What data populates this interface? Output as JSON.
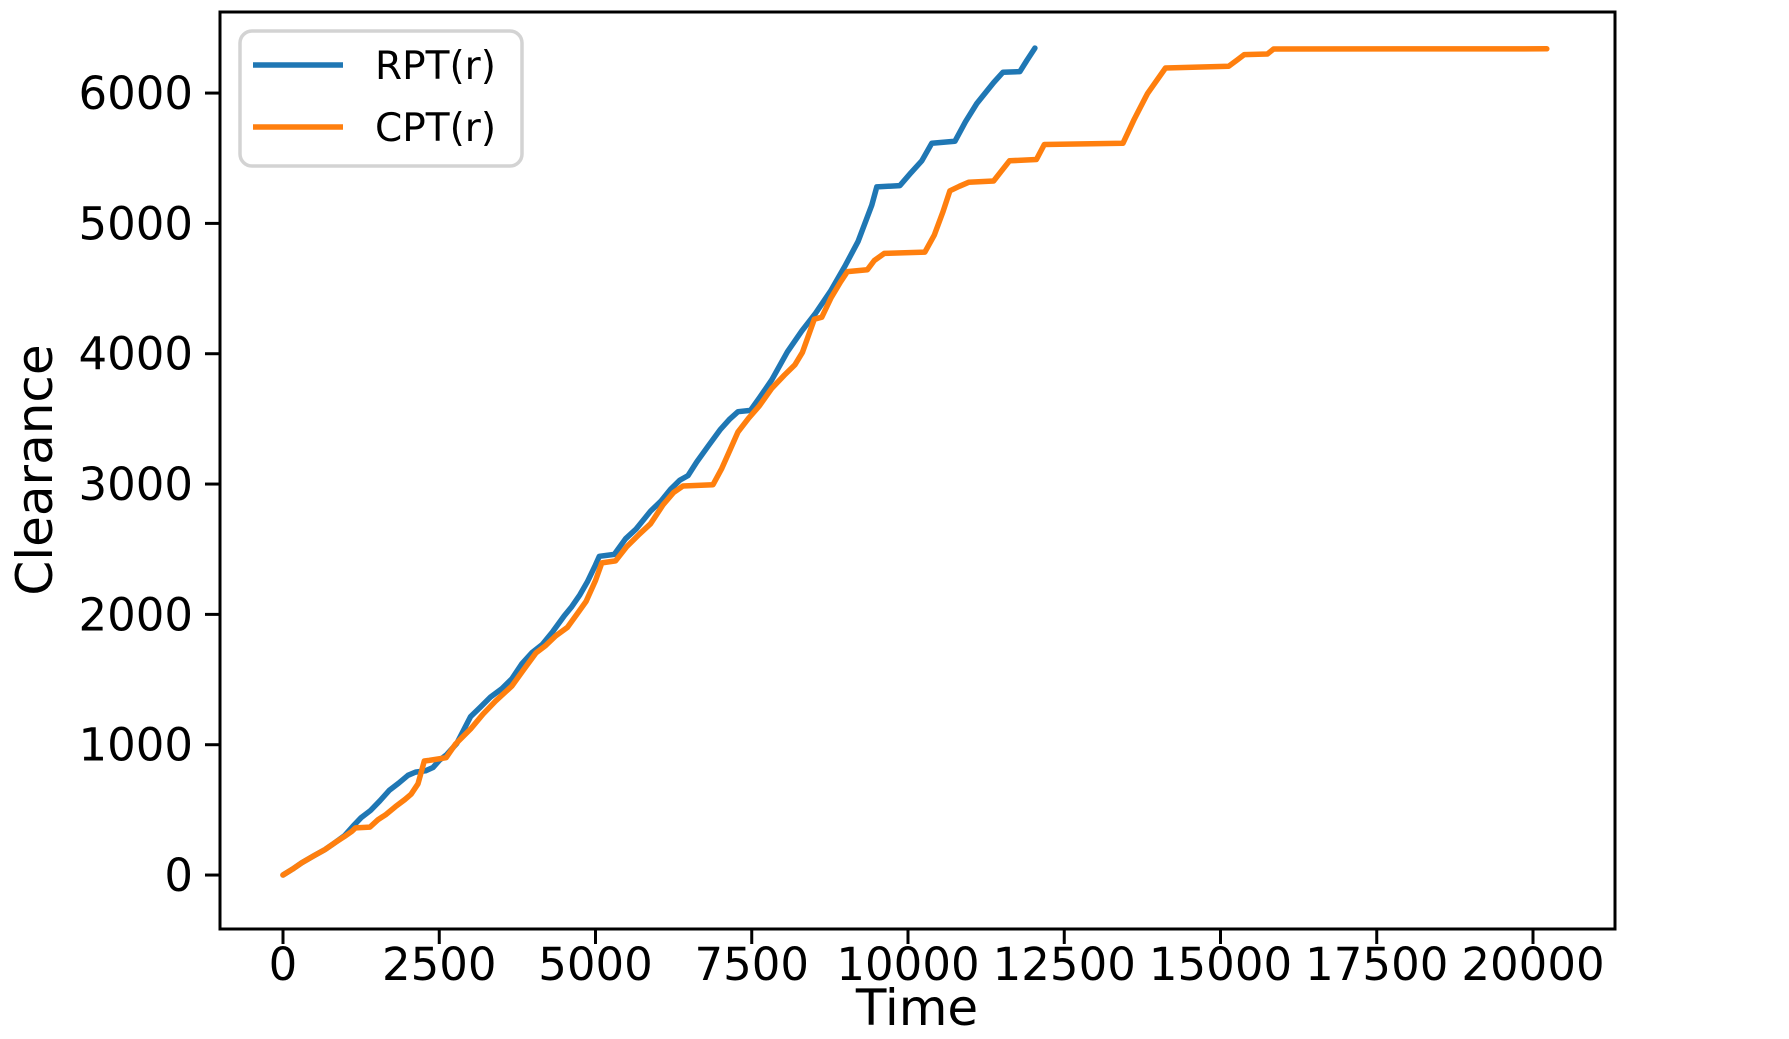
{
  "chart_data": {
    "type": "line",
    "title": "",
    "xlabel": "Time",
    "ylabel": "Clearance",
    "xlim": [
      -1008,
      21312
    ],
    "ylim": [
      -414,
      6622
    ],
    "xticks": [
      0,
      2500,
      5000,
      7500,
      10000,
      12500,
      15000,
      17500,
      20000
    ],
    "yticks": [
      0,
      1000,
      2000,
      3000,
      4000,
      5000,
      6000
    ],
    "grid": false,
    "legend": {
      "position": "upper left",
      "entries": [
        "RPT(r)",
        "CPT(r)"
      ]
    },
    "series": [
      {
        "name": "RPT(r)",
        "color": "#1f77b4",
        "points": [
          [
            0,
            0
          ],
          [
            150,
            45
          ],
          [
            300,
            95
          ],
          [
            500,
            150
          ],
          [
            670,
            195
          ],
          [
            820,
            245
          ],
          [
            980,
            300
          ],
          [
            1120,
            375
          ],
          [
            1250,
            440
          ],
          [
            1400,
            495
          ],
          [
            1550,
            570
          ],
          [
            1700,
            650
          ],
          [
            1850,
            705
          ],
          [
            2000,
            765
          ],
          [
            2120,
            790
          ],
          [
            2280,
            800
          ],
          [
            2400,
            825
          ],
          [
            2500,
            880
          ],
          [
            2620,
            925
          ],
          [
            2780,
            1010
          ],
          [
            3000,
            1215
          ],
          [
            3150,
            1285
          ],
          [
            3320,
            1365
          ],
          [
            3500,
            1430
          ],
          [
            3660,
            1505
          ],
          [
            3820,
            1620
          ],
          [
            3980,
            1705
          ],
          [
            4150,
            1770
          ],
          [
            4320,
            1870
          ],
          [
            4500,
            1990
          ],
          [
            4620,
            2060
          ],
          [
            4750,
            2150
          ],
          [
            4870,
            2250
          ],
          [
            5000,
            2380
          ],
          [
            5060,
            2446
          ],
          [
            5300,
            2460
          ],
          [
            5480,
            2580
          ],
          [
            5650,
            2655
          ],
          [
            5880,
            2792
          ],
          [
            6050,
            2870
          ],
          [
            6200,
            2960
          ],
          [
            6350,
            3030
          ],
          [
            6480,
            3065
          ],
          [
            6620,
            3170
          ],
          [
            6800,
            3290
          ],
          [
            7000,
            3420
          ],
          [
            7150,
            3500
          ],
          [
            7280,
            3555
          ],
          [
            7480,
            3565
          ],
          [
            7620,
            3660
          ],
          [
            7820,
            3800
          ],
          [
            8070,
            4015
          ],
          [
            8300,
            4175
          ],
          [
            8520,
            4310
          ],
          [
            8760,
            4480
          ],
          [
            9000,
            4680
          ],
          [
            9200,
            4860
          ],
          [
            9420,
            5140
          ],
          [
            9500,
            5280
          ],
          [
            9870,
            5290
          ],
          [
            10050,
            5390
          ],
          [
            10220,
            5480
          ],
          [
            10380,
            5615
          ],
          [
            10750,
            5630
          ],
          [
            10920,
            5780
          ],
          [
            11100,
            5920
          ],
          [
            11370,
            6080
          ],
          [
            11520,
            6160
          ],
          [
            11790,
            6165
          ],
          [
            11900,
            6250
          ],
          [
            12030,
            6345
          ]
        ]
      },
      {
        "name": "CPT(r)",
        "color": "#ff7f0e",
        "points": [
          [
            0,
            0
          ],
          [
            150,
            45
          ],
          [
            300,
            95
          ],
          [
            500,
            150
          ],
          [
            670,
            195
          ],
          [
            820,
            245
          ],
          [
            980,
            295
          ],
          [
            1100,
            335
          ],
          [
            1160,
            362
          ],
          [
            1390,
            368
          ],
          [
            1520,
            425
          ],
          [
            1650,
            465
          ],
          [
            1800,
            525
          ],
          [
            1950,
            580
          ],
          [
            2050,
            620
          ],
          [
            2160,
            700
          ],
          [
            2260,
            875
          ],
          [
            2340,
            880
          ],
          [
            2610,
            900
          ],
          [
            2760,
            1005
          ],
          [
            3000,
            1120
          ],
          [
            3200,
            1235
          ],
          [
            3400,
            1335
          ],
          [
            3660,
            1450
          ],
          [
            3850,
            1575
          ],
          [
            4050,
            1705
          ],
          [
            4200,
            1760
          ],
          [
            4363,
            1835
          ],
          [
            4550,
            1900
          ],
          [
            4700,
            2000
          ],
          [
            4850,
            2100
          ],
          [
            5000,
            2260
          ],
          [
            5100,
            2395
          ],
          [
            5320,
            2410
          ],
          [
            5500,
            2520
          ],
          [
            5700,
            2615
          ],
          [
            5880,
            2695
          ],
          [
            6080,
            2840
          ],
          [
            6250,
            2935
          ],
          [
            6400,
            2985
          ],
          [
            6880,
            2995
          ],
          [
            7020,
            3120
          ],
          [
            7160,
            3270
          ],
          [
            7280,
            3400
          ],
          [
            7450,
            3505
          ],
          [
            7620,
            3600
          ],
          [
            7820,
            3735
          ],
          [
            8020,
            3835
          ],
          [
            8190,
            3915
          ],
          [
            8310,
            4010
          ],
          [
            8400,
            4130
          ],
          [
            8500,
            4265
          ],
          [
            8620,
            4280
          ],
          [
            8770,
            4430
          ],
          [
            8920,
            4550
          ],
          [
            9030,
            4630
          ],
          [
            9350,
            4645
          ],
          [
            9460,
            4715
          ],
          [
            9620,
            4770
          ],
          [
            10270,
            4780
          ],
          [
            10420,
            4910
          ],
          [
            10560,
            5090
          ],
          [
            10670,
            5250
          ],
          [
            10820,
            5285
          ],
          [
            10970,
            5315
          ],
          [
            11370,
            5325
          ],
          [
            11500,
            5405
          ],
          [
            11624,
            5480
          ],
          [
            12054,
            5490
          ],
          [
            12180,
            5605
          ],
          [
            13440,
            5615
          ],
          [
            13620,
            5800
          ],
          [
            13830,
            5995
          ],
          [
            14120,
            6192
          ],
          [
            15130,
            6205
          ],
          [
            15270,
            6255
          ],
          [
            15380,
            6295
          ],
          [
            15750,
            6300
          ],
          [
            15850,
            6338
          ],
          [
            20220,
            6340
          ]
        ]
      }
    ]
  },
  "colors": {
    "axis": "#000000",
    "legend_border": "#d3d3d3",
    "background": "#ffffff"
  }
}
